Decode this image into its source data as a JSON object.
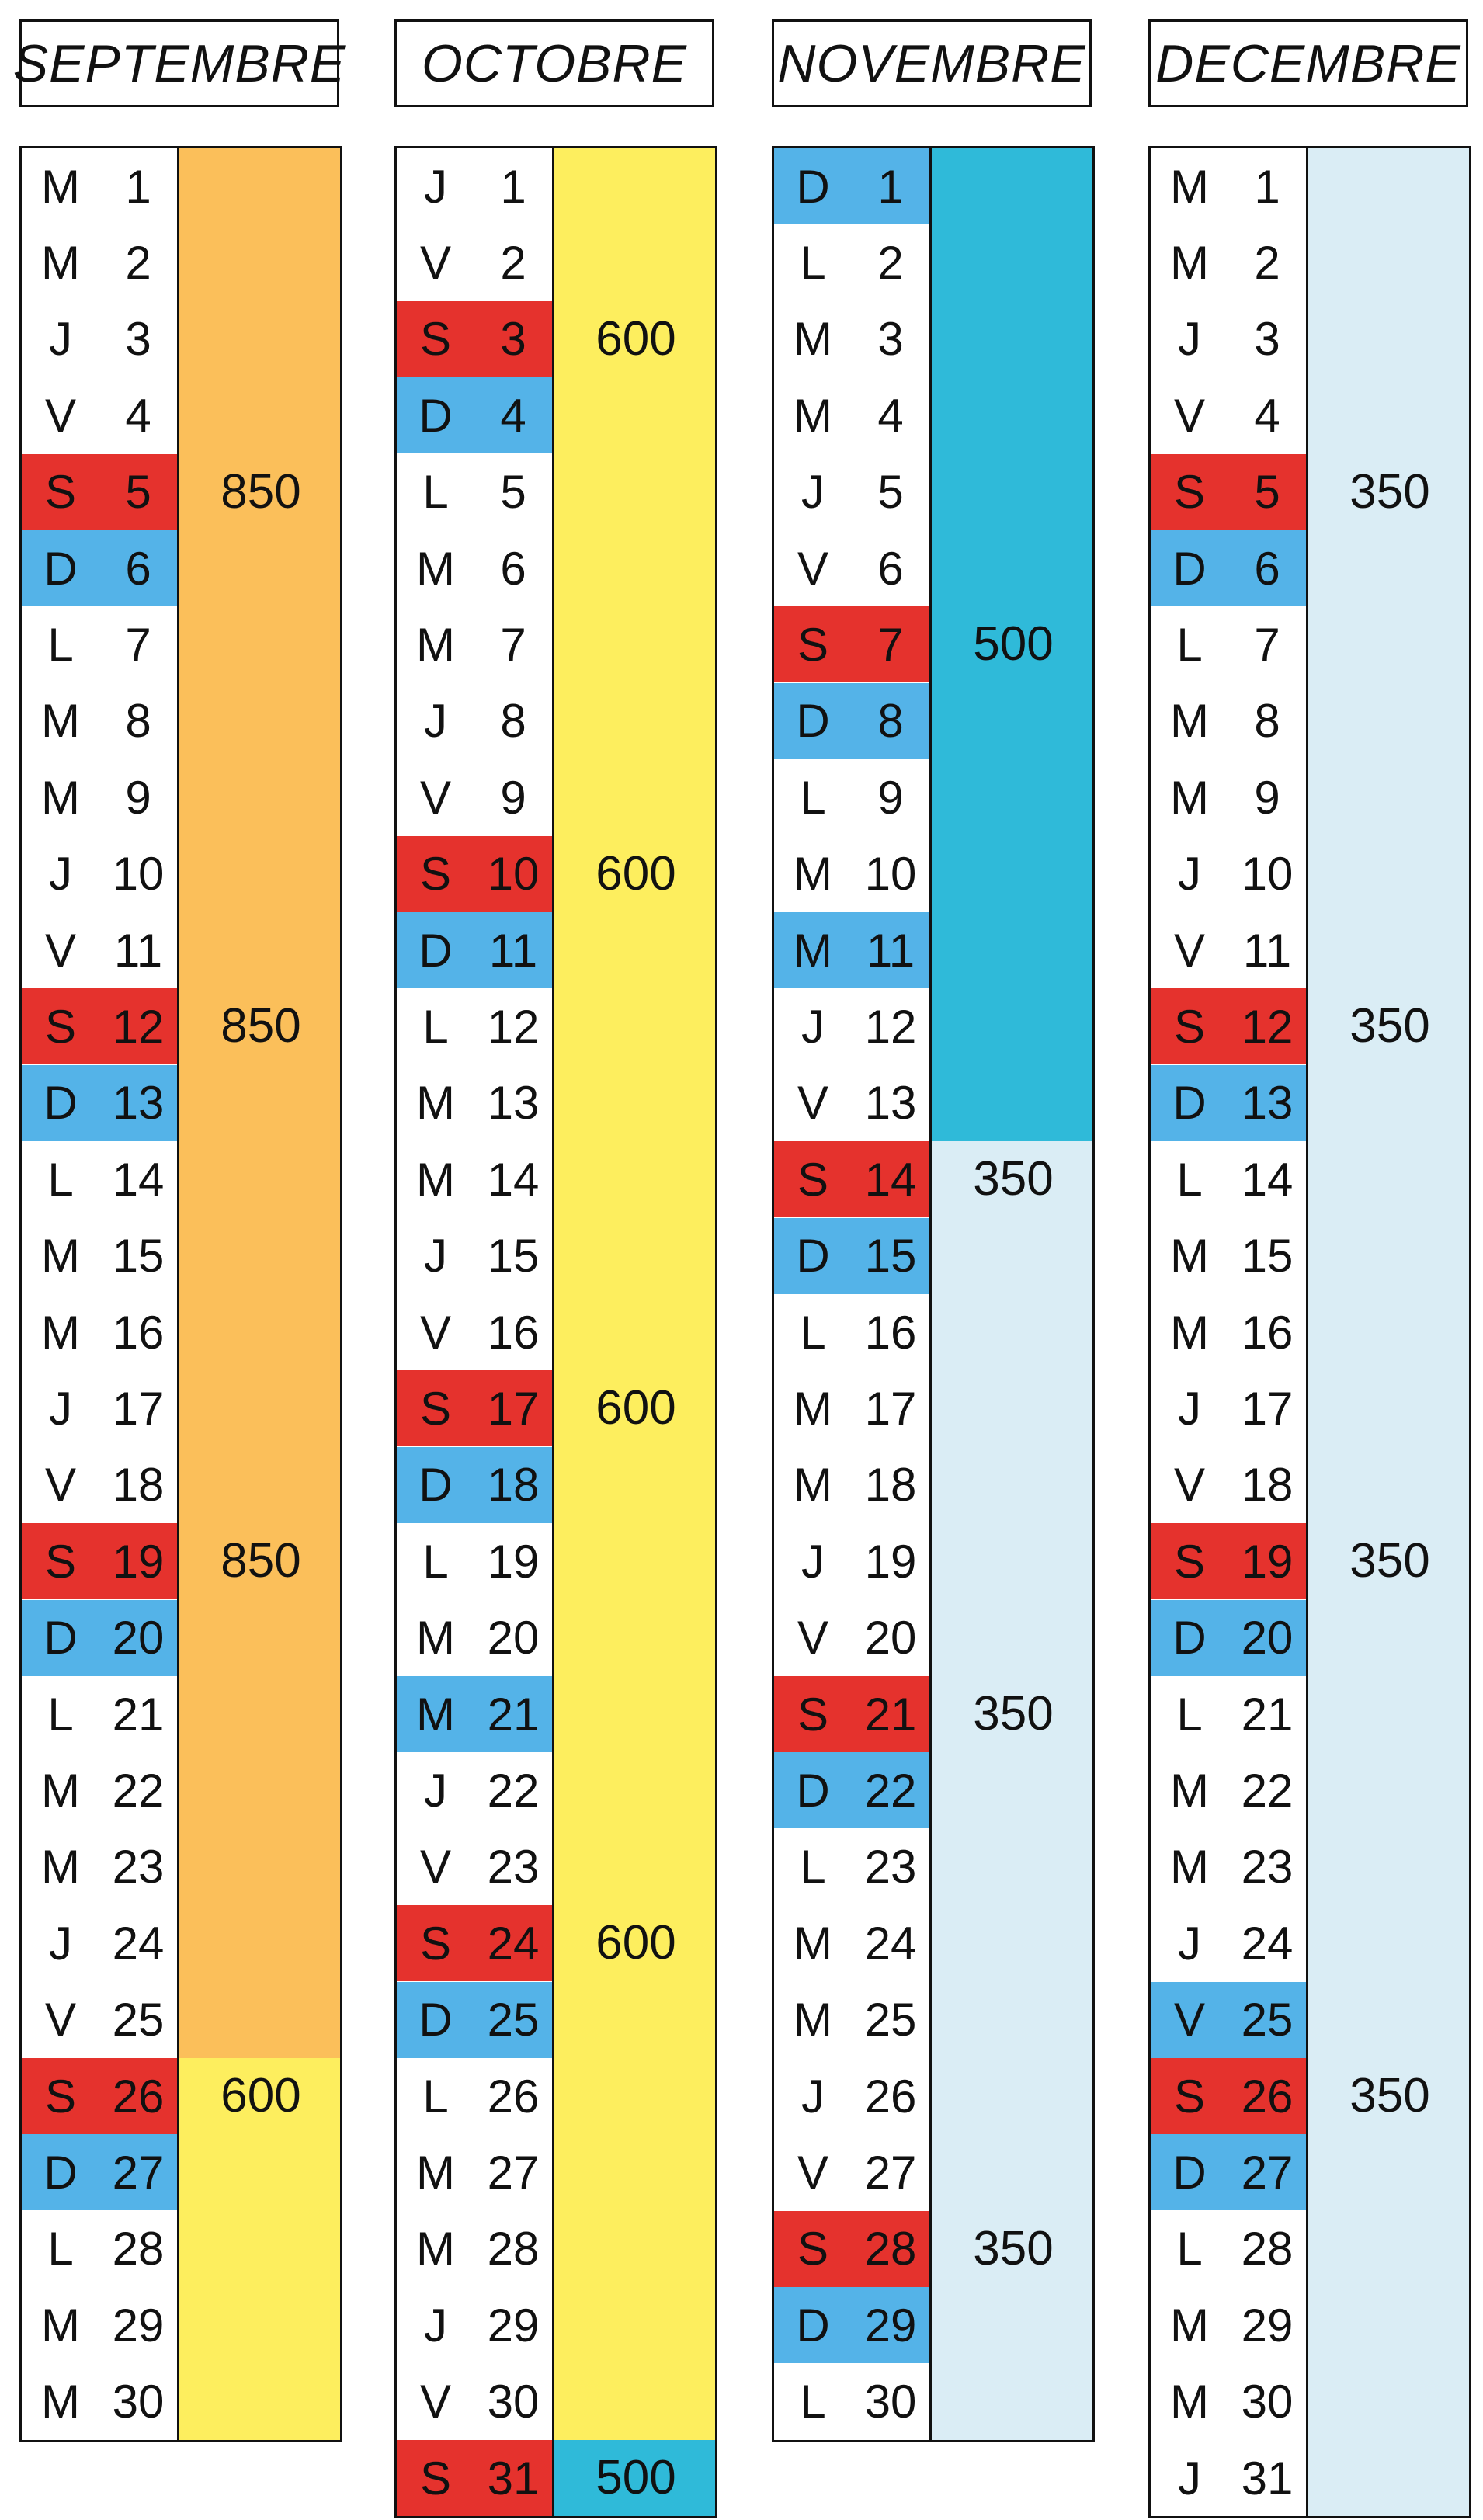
{
  "months": [
    {
      "name": "SEPTEMBRE",
      "days": [
        {
          "l": "M",
          "n": "1"
        },
        {
          "l": "M",
          "n": "2"
        },
        {
          "l": "J",
          "n": "3"
        },
        {
          "l": "V",
          "n": "4"
        },
        {
          "l": "S",
          "n": "5",
          "type": "sat"
        },
        {
          "l": "D",
          "n": "6",
          "type": "hol"
        },
        {
          "l": "L",
          "n": "7"
        },
        {
          "l": "M",
          "n": "8"
        },
        {
          "l": "M",
          "n": "9"
        },
        {
          "l": "J",
          "n": "10"
        },
        {
          "l": "V",
          "n": "11"
        },
        {
          "l": "S",
          "n": "12",
          "type": "sat"
        },
        {
          "l": "D",
          "n": "13",
          "type": "hol"
        },
        {
          "l": "L",
          "n": "14"
        },
        {
          "l": "M",
          "n": "15"
        },
        {
          "l": "M",
          "n": "16"
        },
        {
          "l": "J",
          "n": "17"
        },
        {
          "l": "V",
          "n": "18"
        },
        {
          "l": "S",
          "n": "19",
          "type": "sat"
        },
        {
          "l": "D",
          "n": "20",
          "type": "hol"
        },
        {
          "l": "L",
          "n": "21"
        },
        {
          "l": "M",
          "n": "22"
        },
        {
          "l": "M",
          "n": "23"
        },
        {
          "l": "J",
          "n": "24"
        },
        {
          "l": "V",
          "n": "25"
        },
        {
          "l": "S",
          "n": "26",
          "type": "sat"
        },
        {
          "l": "D",
          "n": "27",
          "type": "hol"
        },
        {
          "l": "L",
          "n": "28"
        },
        {
          "l": "M",
          "n": "29"
        },
        {
          "l": "M",
          "n": "30"
        }
      ],
      "bands": [
        {
          "from": 1,
          "to": 25,
          "color": "#fbbf5a"
        },
        {
          "from": 26,
          "to": 30,
          "color": "#fdee5e"
        }
      ],
      "prices": [
        {
          "day": 5,
          "value": "850"
        },
        {
          "day": 12,
          "value": "850"
        },
        {
          "day": 19,
          "value": "850"
        },
        {
          "day": 26,
          "value": "600"
        }
      ]
    },
    {
      "name": "OCTOBRE",
      "days": [
        {
          "l": "J",
          "n": "1"
        },
        {
          "l": "V",
          "n": "2"
        },
        {
          "l": "S",
          "n": "3",
          "type": "sat"
        },
        {
          "l": "D",
          "n": "4",
          "type": "hol"
        },
        {
          "l": "L",
          "n": "5"
        },
        {
          "l": "M",
          "n": "6"
        },
        {
          "l": "M",
          "n": "7"
        },
        {
          "l": "J",
          "n": "8"
        },
        {
          "l": "V",
          "n": "9"
        },
        {
          "l": "S",
          "n": "10",
          "type": "sat"
        },
        {
          "l": "D",
          "n": "11",
          "type": "hol"
        },
        {
          "l": "L",
          "n": "12"
        },
        {
          "l": "M",
          "n": "13"
        },
        {
          "l": "M",
          "n": "14"
        },
        {
          "l": "J",
          "n": "15"
        },
        {
          "l": "V",
          "n": "16"
        },
        {
          "l": "S",
          "n": "17",
          "type": "sat"
        },
        {
          "l": "D",
          "n": "18",
          "type": "hol"
        },
        {
          "l": "L",
          "n": "19"
        },
        {
          "l": "M",
          "n": "20"
        },
        {
          "l": "M",
          "n": "21",
          "type": "hol"
        },
        {
          "l": "J",
          "n": "22"
        },
        {
          "l": "V",
          "n": "23"
        },
        {
          "l": "S",
          "n": "24",
          "type": "sat"
        },
        {
          "l": "D",
          "n": "25",
          "type": "hol"
        },
        {
          "l": "L",
          "n": "26"
        },
        {
          "l": "M",
          "n": "27"
        },
        {
          "l": "M",
          "n": "28"
        },
        {
          "l": "J",
          "n": "29"
        },
        {
          "l": "V",
          "n": "30"
        },
        {
          "l": "S",
          "n": "31",
          "type": "sat"
        }
      ],
      "bands": [
        {
          "from": 1,
          "to": 30,
          "color": "#fdee5e"
        },
        {
          "from": 31,
          "to": 31,
          "color": "#2fbad9"
        }
      ],
      "prices": [
        {
          "day": 3,
          "value": "600"
        },
        {
          "day": 10,
          "value": "600"
        },
        {
          "day": 17,
          "value": "600"
        },
        {
          "day": 24,
          "value": "600"
        },
        {
          "day": 31,
          "value": "500"
        }
      ]
    },
    {
      "name": "NOVEMBRE",
      "days": [
        {
          "l": "D",
          "n": "1",
          "type": "hol"
        },
        {
          "l": "L",
          "n": "2"
        },
        {
          "l": "M",
          "n": "3"
        },
        {
          "l": "M",
          "n": "4"
        },
        {
          "l": "J",
          "n": "5"
        },
        {
          "l": "V",
          "n": "6"
        },
        {
          "l": "S",
          "n": "7",
          "type": "sat"
        },
        {
          "l": "D",
          "n": "8",
          "type": "hol"
        },
        {
          "l": "L",
          "n": "9"
        },
        {
          "l": "M",
          "n": "10"
        },
        {
          "l": "M",
          "n": "11",
          "type": "hol"
        },
        {
          "l": "J",
          "n": "12"
        },
        {
          "l": "V",
          "n": "13"
        },
        {
          "l": "S",
          "n": "14",
          "type": "sat"
        },
        {
          "l": "D",
          "n": "15",
          "type": "hol"
        },
        {
          "l": "L",
          "n": "16"
        },
        {
          "l": "M",
          "n": "17"
        },
        {
          "l": "M",
          "n": "18"
        },
        {
          "l": "J",
          "n": "19"
        },
        {
          "l": "V",
          "n": "20"
        },
        {
          "l": "S",
          "n": "21",
          "type": "sat"
        },
        {
          "l": "D",
          "n": "22",
          "type": "hol"
        },
        {
          "l": "L",
          "n": "23"
        },
        {
          "l": "M",
          "n": "24"
        },
        {
          "l": "M",
          "n": "25"
        },
        {
          "l": "J",
          "n": "26"
        },
        {
          "l": "V",
          "n": "27"
        },
        {
          "l": "S",
          "n": "28",
          "type": "sat"
        },
        {
          "l": "D",
          "n": "29",
          "type": "hol"
        },
        {
          "l": "L",
          "n": "30"
        }
      ],
      "bands": [
        {
          "from": 1,
          "to": 13,
          "color": "#2fbad9"
        },
        {
          "from": 14,
          "to": 30,
          "color": "#daedf5"
        }
      ],
      "prices": [
        {
          "day": 7,
          "value": "500"
        },
        {
          "day": 14,
          "value": "350"
        },
        {
          "day": 21,
          "value": "350"
        },
        {
          "day": 28,
          "value": "350"
        }
      ]
    },
    {
      "name": "DECEMBRE",
      "days": [
        {
          "l": "M",
          "n": "1"
        },
        {
          "l": "M",
          "n": "2"
        },
        {
          "l": "J",
          "n": "3"
        },
        {
          "l": "V",
          "n": "4"
        },
        {
          "l": "S",
          "n": "5",
          "type": "sat"
        },
        {
          "l": "D",
          "n": "6",
          "type": "hol"
        },
        {
          "l": "L",
          "n": "7"
        },
        {
          "l": "M",
          "n": "8"
        },
        {
          "l": "M",
          "n": "9"
        },
        {
          "l": "J",
          "n": "10"
        },
        {
          "l": "V",
          "n": "11"
        },
        {
          "l": "S",
          "n": "12",
          "type": "sat"
        },
        {
          "l": "D",
          "n": "13",
          "type": "hol"
        },
        {
          "l": "L",
          "n": "14"
        },
        {
          "l": "M",
          "n": "15"
        },
        {
          "l": "M",
          "n": "16"
        },
        {
          "l": "J",
          "n": "17"
        },
        {
          "l": "V",
          "n": "18"
        },
        {
          "l": "S",
          "n": "19",
          "type": "sat"
        },
        {
          "l": "D",
          "n": "20",
          "type": "hol"
        },
        {
          "l": "L",
          "n": "21"
        },
        {
          "l": "M",
          "n": "22"
        },
        {
          "l": "M",
          "n": "23"
        },
        {
          "l": "J",
          "n": "24"
        },
        {
          "l": "V",
          "n": "25",
          "type": "hol"
        },
        {
          "l": "S",
          "n": "26",
          "type": "sat"
        },
        {
          "l": "D",
          "n": "27",
          "type": "hol"
        },
        {
          "l": "L",
          "n": "28"
        },
        {
          "l": "M",
          "n": "29"
        },
        {
          "l": "M",
          "n": "30"
        },
        {
          "l": "J",
          "n": "31"
        }
      ],
      "bands": [
        {
          "from": 1,
          "to": 31,
          "color": "#daedf5"
        }
      ],
      "prices": [
        {
          "day": 5,
          "value": "350"
        },
        {
          "day": 12,
          "value": "350"
        },
        {
          "day": 19,
          "value": "350"
        },
        {
          "day": 26,
          "value": "350"
        }
      ]
    }
  ],
  "colors": {
    "saturday": "#e5322d",
    "holiday": "#54b3e8",
    "border": "#111111"
  }
}
